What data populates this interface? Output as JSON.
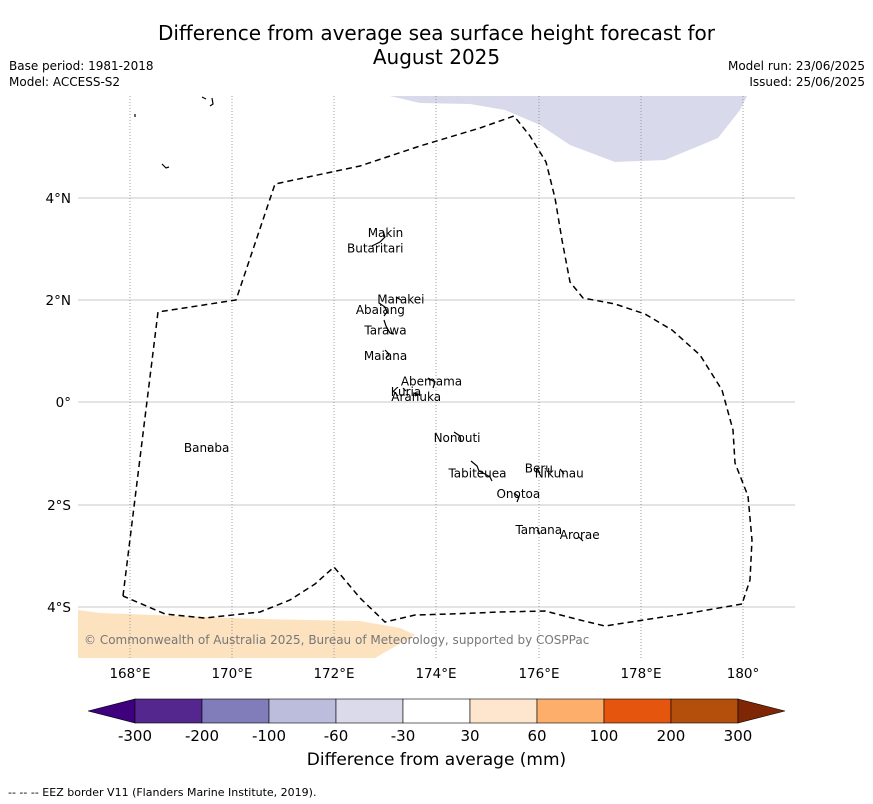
{
  "title_line1": "Difference from average sea surface height forecast for",
  "title_line2": "August 2025",
  "meta": {
    "base_period": "Base period: 1981-2018",
    "model": "Model: ACCESS-S2",
    "model_run": "Model run: 23/06/2025",
    "issued": "Issued: 25/06/2025"
  },
  "map": {
    "lon_ticks": [
      "168°E",
      "170°E",
      "172°E",
      "174°E",
      "176°E",
      "178°E",
      "180°"
    ],
    "lat_ticks": [
      "4°N",
      "2°N",
      "0°",
      "2°S",
      "4°S"
    ],
    "places": [
      {
        "name": "Makin",
        "lon": 173.0,
        "lat": 3.3
      },
      {
        "name": "Butaritari",
        "lon": 172.8,
        "lat": 3.0
      },
      {
        "name": "Marakei",
        "lon": 173.3,
        "lat": 2.0
      },
      {
        "name": "Abaiang",
        "lon": 172.9,
        "lat": 1.8
      },
      {
        "name": "Tarawa",
        "lon": 173.0,
        "lat": 1.4
      },
      {
        "name": "Maiana",
        "lon": 173.0,
        "lat": 0.9
      },
      {
        "name": "Abemama",
        "lon": 173.9,
        "lat": 0.4
      },
      {
        "name": "Kuria",
        "lon": 173.4,
        "lat": 0.2
      },
      {
        "name": "Aranuka",
        "lon": 173.6,
        "lat": 0.1
      },
      {
        "name": "Nonouti",
        "lon": 174.4,
        "lat": -0.7
      },
      {
        "name": "Banaba",
        "lon": 169.5,
        "lat": -0.9
      },
      {
        "name": "Beru",
        "lon": 176.0,
        "lat": -1.3
      },
      {
        "name": "Nikunau",
        "lon": 176.4,
        "lat": -1.4
      },
      {
        "name": "Tabiteuea",
        "lon": 174.8,
        "lat": -1.4
      },
      {
        "name": "Onotoa",
        "lon": 175.6,
        "lat": -1.8
      },
      {
        "name": "Tamana",
        "lon": 176.0,
        "lat": -2.5
      },
      {
        "name": "Arorae",
        "lon": 176.8,
        "lat": -2.6
      }
    ],
    "copyright": "© Commonwealth of Australia 2025, Bureau of Meteorology, supported by COSPPac"
  },
  "colorbar": {
    "label": "Difference from average (mm)",
    "ticks": [
      "-300",
      "-200",
      "-100",
      "-60",
      "-30",
      "30",
      "60",
      "100",
      "200",
      "300"
    ],
    "colors": {
      "under": "#3f007d",
      "bins": [
        "#54278f",
        "#807dba",
        "#bcbddc",
        "#dadaeb",
        "#ffffff",
        "#fee6ce",
        "#fdae6b",
        "#e6550d",
        "#b34f0a"
      ],
      "over": "#7f2704"
    }
  },
  "footer": "--  --  -- EEZ border V11 (Flanders Marine Institute, 2019)."
}
